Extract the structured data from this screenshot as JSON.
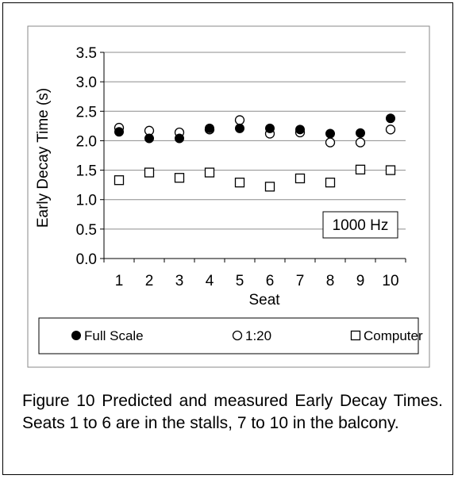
{
  "chart_data": {
    "type": "scatter",
    "title": "",
    "xlabel": "Seat",
    "ylabel": "Early Decay Time (s)",
    "ylim": [
      0,
      3.5
    ],
    "yticks": [
      "0.0",
      "0.5",
      "1.0",
      "1.5",
      "2.0",
      "2.5",
      "3.0",
      "3.5"
    ],
    "categories": [
      "1",
      "2",
      "3",
      "4",
      "5",
      "6",
      "7",
      "8",
      "9",
      "10"
    ],
    "grid": true,
    "annotation": "1000 Hz",
    "legend_position": "bottom",
    "series": [
      {
        "name": "Full Scale",
        "marker": "filled-circle",
        "color": "#000000",
        "values": [
          2.15,
          2.04,
          2.04,
          2.21,
          2.21,
          2.21,
          2.19,
          2.12,
          2.13,
          2.38
        ]
      },
      {
        "name": "1:20",
        "marker": "open-circle",
        "color": "#000000",
        "values": [
          2.22,
          2.17,
          2.14,
          2.19,
          2.35,
          2.12,
          2.14,
          1.97,
          1.97,
          2.19
        ]
      },
      {
        "name": "Computer",
        "marker": "open-square",
        "color": "#000000",
        "values": [
          1.33,
          1.46,
          1.37,
          1.46,
          1.29,
          1.22,
          1.36,
          1.29,
          1.51,
          1.5
        ]
      }
    ]
  },
  "caption": "Figure 10 Predicted and measured Early Decay Times.  Seats 1 to 6 are in the stalls, 7 to 10 in the balcony."
}
